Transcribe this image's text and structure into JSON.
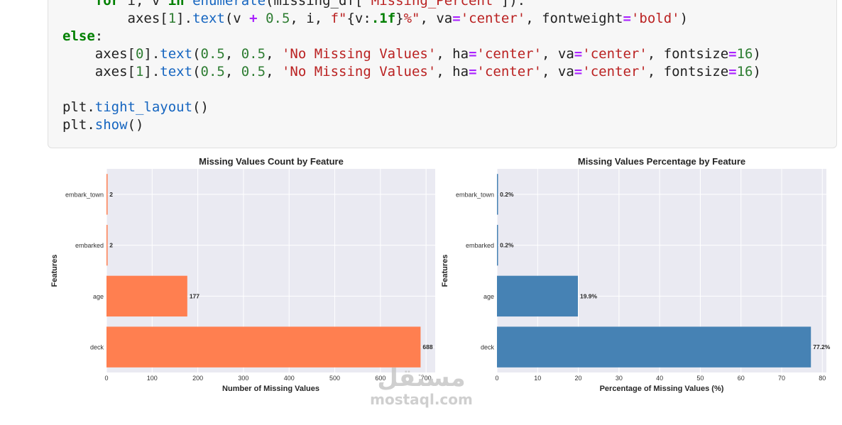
{
  "code": {
    "lines": [
      [
        [
          "",
          "    "
        ],
        [
          "kw",
          "for"
        ],
        [
          "",
          " i, v "
        ],
        [
          "kw",
          "in"
        ],
        [
          "",
          " "
        ],
        [
          "fn",
          "enumerate"
        ],
        [
          "",
          "(missing_df["
        ],
        [
          "str",
          "'Missing_Percent'"
        ],
        [
          "",
          "]):"
        ]
      ],
      [
        [
          "",
          "        axes["
        ],
        [
          "num",
          "1"
        ],
        [
          "",
          "]."
        ],
        [
          "fn",
          "text"
        ],
        [
          "",
          "(v "
        ],
        [
          "op",
          "+"
        ],
        [
          "",
          " "
        ],
        [
          "num",
          "0.5"
        ],
        [
          "",
          ", i, "
        ],
        [
          "str",
          "f\""
        ],
        [
          "",
          "{v:"
        ],
        [
          "kw",
          ".1f"
        ],
        [
          "",
          "}"
        ],
        [
          "str",
          "%\""
        ],
        [
          "",
          ", va"
        ],
        [
          "op",
          "="
        ],
        [
          "str",
          "'center'"
        ],
        [
          "",
          ", fontweight"
        ],
        [
          "op",
          "="
        ],
        [
          "str",
          "'bold'"
        ],
        [
          "",
          ")"
        ]
      ],
      [
        [
          "kw",
          "else"
        ],
        [
          "",
          ":"
        ]
      ],
      [
        [
          "",
          "    axes["
        ],
        [
          "num",
          "0"
        ],
        [
          "",
          "]."
        ],
        [
          "fn",
          "text"
        ],
        [
          "",
          "("
        ],
        [
          "num",
          "0.5"
        ],
        [
          "",
          ", "
        ],
        [
          "num",
          "0.5"
        ],
        [
          "",
          ", "
        ],
        [
          "str",
          "'No Missing Values'"
        ],
        [
          "",
          ", ha"
        ],
        [
          "op",
          "="
        ],
        [
          "str",
          "'center'"
        ],
        [
          "",
          ", va"
        ],
        [
          "op",
          "="
        ],
        [
          "str",
          "'center'"
        ],
        [
          "",
          ", fontsize"
        ],
        [
          "op",
          "="
        ],
        [
          "num",
          "16"
        ],
        [
          "",
          ")"
        ]
      ],
      [
        [
          "",
          "    axes["
        ],
        [
          "num",
          "1"
        ],
        [
          "",
          "]."
        ],
        [
          "fn",
          "text"
        ],
        [
          "",
          "("
        ],
        [
          "num",
          "0.5"
        ],
        [
          "",
          ", "
        ],
        [
          "num",
          "0.5"
        ],
        [
          "",
          ", "
        ],
        [
          "str",
          "'No Missing Values'"
        ],
        [
          "",
          ", ha"
        ],
        [
          "op",
          "="
        ],
        [
          "str",
          "'center'"
        ],
        [
          "",
          ", va"
        ],
        [
          "op",
          "="
        ],
        [
          "str",
          "'center'"
        ],
        [
          "",
          ", fontsize"
        ],
        [
          "op",
          "="
        ],
        [
          "num",
          "16"
        ],
        [
          "",
          ")"
        ]
      ],
      [],
      [
        [
          "",
          "plt."
        ],
        [
          "fn",
          "tight_layout"
        ],
        [
          "",
          "()"
        ]
      ],
      [
        [
          "",
          "plt."
        ],
        [
          "fn",
          "show"
        ],
        [
          "",
          "()"
        ]
      ]
    ]
  },
  "chart_data": [
    {
      "type": "bar",
      "orientation": "horizontal",
      "title": "Missing Values Count by Feature",
      "xlabel": "Number of Missing Values",
      "ylabel": "Features",
      "categories": [
        "deck",
        "age",
        "embarked",
        "embark_town"
      ],
      "values": [
        688,
        177,
        2,
        2
      ],
      "data_labels": [
        "688",
        "177",
        "2",
        "2"
      ],
      "xlim": [
        0,
        720
      ],
      "xticks": [
        0,
        100,
        200,
        300,
        400,
        500,
        600,
        700
      ],
      "color": "#ff7f50",
      "grid": true
    },
    {
      "type": "bar",
      "orientation": "horizontal",
      "title": "Missing Values Percentage by Feature",
      "xlabel": "Percentage of Missing Values (%)",
      "ylabel": "Features",
      "categories": [
        "deck",
        "age",
        "embarked",
        "embark_town"
      ],
      "values": [
        77.2,
        19.9,
        0.2,
        0.2
      ],
      "data_labels": [
        "77.2%",
        "19.9%",
        "0.2%",
        "0.2%"
      ],
      "xlim": [
        0,
        81
      ],
      "xticks": [
        0,
        10,
        20,
        30,
        40,
        50,
        60,
        70,
        80
      ],
      "color": "#4682b4",
      "grid": true
    }
  ],
  "watermark": {
    "arabic": "مستقل",
    "latin": "mostaql.com"
  }
}
